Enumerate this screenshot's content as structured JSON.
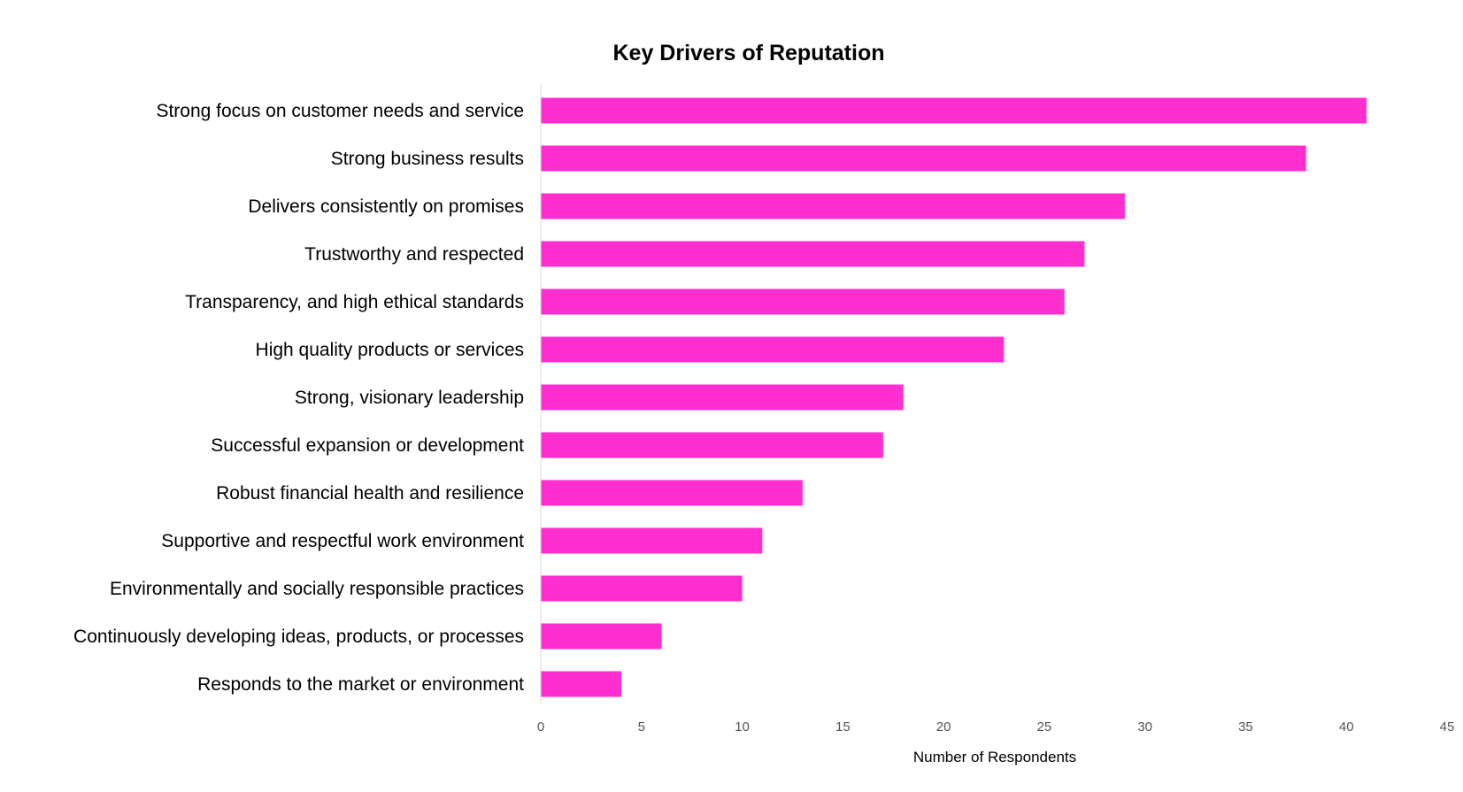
{
  "chart_data": {
    "type": "bar",
    "orientation": "horizontal",
    "title": "Key Drivers of Reputation",
    "xlabel": "Number of Respondents",
    "ylabel": "",
    "xlim": [
      0,
      45
    ],
    "xticks": [
      0,
      5,
      10,
      15,
      20,
      25,
      30,
      35,
      40,
      45
    ],
    "grid": false,
    "legend": "none",
    "bar_color": "#FF2ECF",
    "axis_color": "#D9D9D9",
    "categories": [
      "Strong focus on customer needs and service",
      "Strong business results",
      "Delivers consistently on promises",
      "Trustworthy and respected",
      "Transparency, and high ethical standards",
      "High quality products or services",
      "Strong, visionary leadership",
      "Successful expansion or development",
      "Robust financial health and resilience",
      "Supportive and respectful work environment",
      "Environmentally and socially responsible practices",
      "Continuously developing ideas, products, or processes",
      "Responds to the market or environment"
    ],
    "values": [
      41,
      38,
      29,
      27,
      26,
      23,
      18,
      17,
      13,
      11,
      10,
      6,
      4
    ]
  }
}
